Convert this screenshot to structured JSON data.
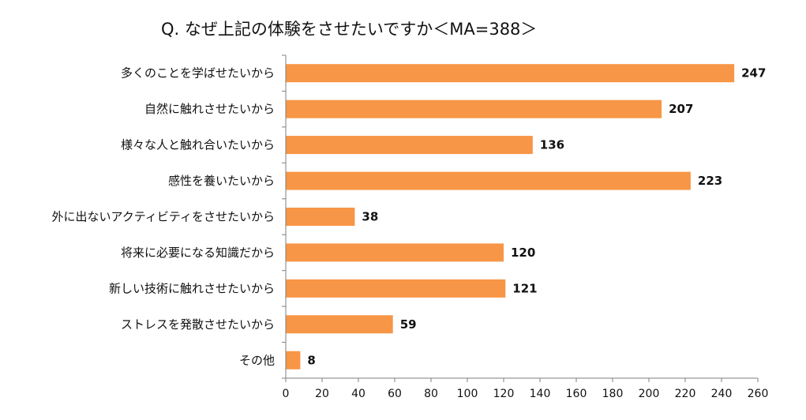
{
  "chart_data": {
    "type": "bar",
    "orientation": "horizontal",
    "title": "Q. なぜ上記の体験をさせたいですか＜MA=388＞",
    "categories": [
      "多くのことを学ばせたいから",
      "自然に触れさせたいから",
      "様々な人と触れ合いたいから",
      "感性を養いたいから",
      "外に出ないアクティビティをさせたいから",
      "将来に必要になる知識だから",
      "新しい技術に触れさせたいから",
      "ストレスを発散させたいから",
      "その他"
    ],
    "values": [
      247,
      207,
      136,
      223,
      38,
      120,
      121,
      59,
      8
    ],
    "xlim": [
      0,
      260
    ],
    "xticks": [
      0,
      20,
      40,
      60,
      80,
      100,
      120,
      140,
      160,
      180,
      200,
      220,
      240,
      260
    ],
    "xlabel": "",
    "ylabel": "",
    "grid": false,
    "legend": "none",
    "bar_color": "#F79646",
    "data_labels": true
  }
}
